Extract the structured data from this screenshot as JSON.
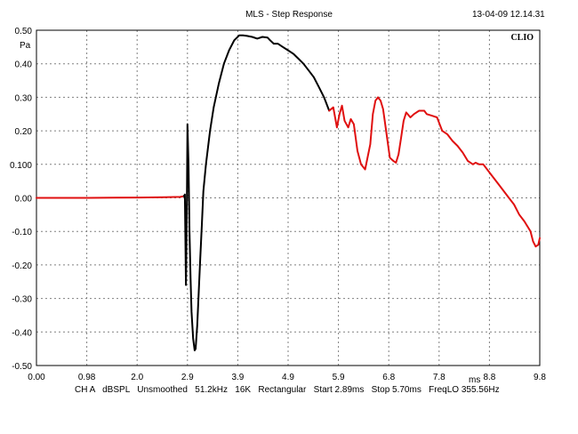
{
  "header": {
    "title": "MLS - Step Response",
    "datestamp": "13-04-09 12.14.31",
    "brand": "CLIO"
  },
  "footer": {
    "text": "CH A   dBSPL   Unsmoothed   51.2kHz   16K   Rectangular   Start 2.89ms   Stop 5.70ms   FreqLO 355.56Hz"
  },
  "chart_data": {
    "type": "line",
    "title": "MLS - Step Response",
    "xlabel": "ms",
    "ylabel": "Pa",
    "xlim": [
      0,
      9.8
    ],
    "ylim": [
      -0.5,
      0.5
    ],
    "grid": true,
    "colors": {
      "series": "#000000",
      "highlight": "#e01010",
      "grid": "#808080",
      "frame": "#000000"
    },
    "x_ticks": [
      "0.00",
      "0.98",
      "2.0",
      "2.9",
      "3.9",
      "4.9",
      "5.9",
      "6.8",
      "7.8",
      "8.8",
      "9.8"
    ],
    "y_ticks": [
      "0.50",
      "0.40",
      "0.30",
      "0.20",
      "0.100",
      "0.00",
      "-0.10",
      "-0.20",
      "-0.30",
      "-0.40",
      "-0.50"
    ],
    "series": [
      {
        "color": "#e01010",
        "x": [
          0.0,
          1.0,
          2.0,
          2.5,
          2.8,
          2.87
        ],
        "y": [
          0.0,
          0.0,
          0.001,
          0.002,
          0.003,
          0.005
        ]
      },
      {
        "color": "#000000",
        "x": [
          2.87,
          2.89,
          2.91,
          2.93,
          2.94,
          2.96,
          2.98,
          3.0,
          3.02,
          3.05,
          3.08,
          3.1,
          3.13,
          3.16,
          3.19,
          3.22,
          3.25,
          3.3,
          3.38,
          3.45,
          3.55,
          3.65,
          3.75,
          3.85,
          3.95,
          4.02,
          4.1,
          4.2,
          4.3,
          4.4,
          4.5,
          4.55,
          4.62,
          4.7,
          4.8,
          4.9,
          5.0,
          5.1,
          5.2,
          5.3,
          5.4,
          5.5,
          5.6,
          5.7
        ],
        "y": [
          0.005,
          0.01,
          -0.26,
          0.0,
          0.22,
          0.1,
          -0.1,
          -0.24,
          -0.34,
          -0.42,
          -0.455,
          -0.45,
          -0.38,
          -0.28,
          -0.18,
          -0.08,
          0.02,
          0.1,
          0.2,
          0.27,
          0.34,
          0.4,
          0.44,
          0.47,
          0.485,
          0.485,
          0.483,
          0.48,
          0.475,
          0.48,
          0.478,
          0.47,
          0.46,
          0.46,
          0.45,
          0.44,
          0.43,
          0.415,
          0.4,
          0.38,
          0.36,
          0.33,
          0.3,
          0.26
        ]
      },
      {
        "color": "#e01010",
        "x": [
          5.7,
          5.78,
          5.85,
          5.9,
          5.95,
          6.0,
          6.07,
          6.12,
          6.18,
          6.25,
          6.32,
          6.4,
          6.5,
          6.55,
          6.6,
          6.65,
          6.7,
          6.75,
          6.8,
          6.88,
          6.95,
          7.0,
          7.05,
          7.1,
          7.15,
          7.2,
          7.28,
          7.35,
          7.45,
          7.55,
          7.6,
          7.7,
          7.8,
          7.85,
          7.9,
          8.0,
          8.1,
          8.2,
          8.3,
          8.4,
          8.5,
          8.55,
          8.62,
          8.7,
          8.75,
          8.8,
          8.9,
          9.0,
          9.1,
          9.2,
          9.3,
          9.4,
          9.5,
          9.58,
          9.62,
          9.67,
          9.72,
          9.77,
          9.8
        ],
        "y": [
          0.26,
          0.27,
          0.21,
          0.25,
          0.275,
          0.23,
          0.21,
          0.235,
          0.22,
          0.14,
          0.1,
          0.085,
          0.16,
          0.25,
          0.29,
          0.3,
          0.29,
          0.265,
          0.21,
          0.12,
          0.11,
          0.105,
          0.13,
          0.18,
          0.23,
          0.255,
          0.24,
          0.25,
          0.26,
          0.26,
          0.25,
          0.245,
          0.24,
          0.22,
          0.2,
          0.19,
          0.17,
          0.155,
          0.135,
          0.11,
          0.1,
          0.105,
          0.1,
          0.1,
          0.09,
          0.08,
          0.06,
          0.04,
          0.02,
          0.0,
          -0.02,
          -0.05,
          -0.07,
          -0.09,
          -0.1,
          -0.13,
          -0.145,
          -0.14,
          -0.12
        ]
      }
    ]
  }
}
